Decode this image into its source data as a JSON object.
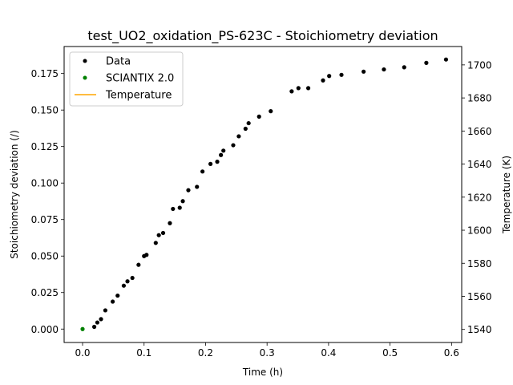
{
  "chart_data": {
    "type": "scatter",
    "title": "test_UO2_oxidation_PS-623C - Stoichiometry deviation",
    "xlabel": "Time (h)",
    "ylabel": "Stoichiometry deviation (/)",
    "y2label": "Temperature (K)",
    "xlim": [
      -0.03,
      0.6165
    ],
    "ylim": [
      -0.0092,
      0.1935
    ],
    "y2lim": [
      1532.1,
      1711.1
    ],
    "xticks": [
      "0.0",
      "0.1",
      "0.2",
      "0.3",
      "0.4",
      "0.5",
      "0.6"
    ],
    "xtick_values": [
      0.0,
      0.1,
      0.2,
      0.3,
      0.4,
      0.5,
      0.6
    ],
    "yticks": [
      "0.000",
      "0.025",
      "0.050",
      "0.075",
      "0.100",
      "0.125",
      "0.150",
      "0.175"
    ],
    "ytick_values": [
      0.0,
      0.025,
      0.05,
      0.075,
      0.1,
      0.125,
      0.15,
      0.175
    ],
    "y2ticks": [
      "1540",
      "1560",
      "1580",
      "1600",
      "1620",
      "1640",
      "1660",
      "1680",
      "1700"
    ],
    "y2tick_values": [
      1540,
      1560,
      1580,
      1600,
      1620,
      1640,
      1660,
      1680,
      1700
    ],
    "grid": false,
    "legend_position": "top-left",
    "series": [
      {
        "name": "Data",
        "color": "#000000",
        "marker": "dot",
        "axis": "left",
        "x": [
          0.019,
          0.024,
          0.03,
          0.037,
          0.049,
          0.057,
          0.067,
          0.073,
          0.081,
          0.091,
          0.1,
          0.104,
          0.119,
          0.124,
          0.131,
          0.142,
          0.147,
          0.158,
          0.163,
          0.172,
          0.186,
          0.195,
          0.208,
          0.219,
          0.225,
          0.229,
          0.245,
          0.254,
          0.265,
          0.27,
          0.287,
          0.306,
          0.34,
          0.351,
          0.367,
          0.391,
          0.401,
          0.421,
          0.457,
          0.49,
          0.523,
          0.559,
          0.591
        ],
        "y": [
          0.0015,
          0.0045,
          0.0068,
          0.0128,
          0.0188,
          0.0229,
          0.0297,
          0.0327,
          0.035,
          0.044,
          0.05,
          0.0508,
          0.059,
          0.0643,
          0.0658,
          0.0725,
          0.0823,
          0.0831,
          0.0876,
          0.0951,
          0.0974,
          0.1079,
          0.1131,
          0.1146,
          0.1192,
          0.1222,
          0.1259,
          0.132,
          0.1372,
          0.141,
          0.1455,
          0.1492,
          0.1628,
          0.165,
          0.165,
          0.1703,
          0.1733,
          0.1741,
          0.1763,
          0.1778,
          0.1793,
          0.1823,
          0.1846
        ]
      },
      {
        "name": "SCIANTIX 2.0",
        "color": "#008000",
        "marker": "dot",
        "axis": "left",
        "x": [
          0.0
        ],
        "y": [
          0.0
        ]
      },
      {
        "name": "Temperature",
        "color": "#ffa500",
        "marker": "line",
        "axis": "right",
        "x": [],
        "y": []
      }
    ]
  }
}
